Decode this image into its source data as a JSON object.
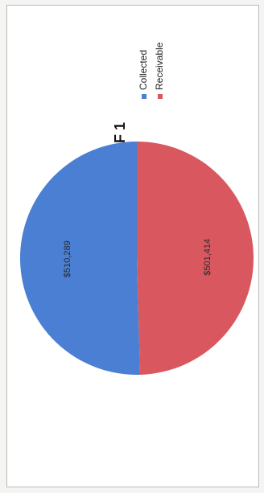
{
  "chart_data": {
    "type": "pie",
    "title": "TIF 1",
    "orientation": "rotated-90-counterclockwise",
    "legend_position": "top-right",
    "slices": [
      {
        "name": "Collected",
        "value": 510289,
        "label": "$510,289",
        "color": "#4a7fd3"
      },
      {
        "name": "Receivable",
        "value": 501414,
        "label": "$501,414",
        "color": "#d9585f"
      }
    ]
  }
}
